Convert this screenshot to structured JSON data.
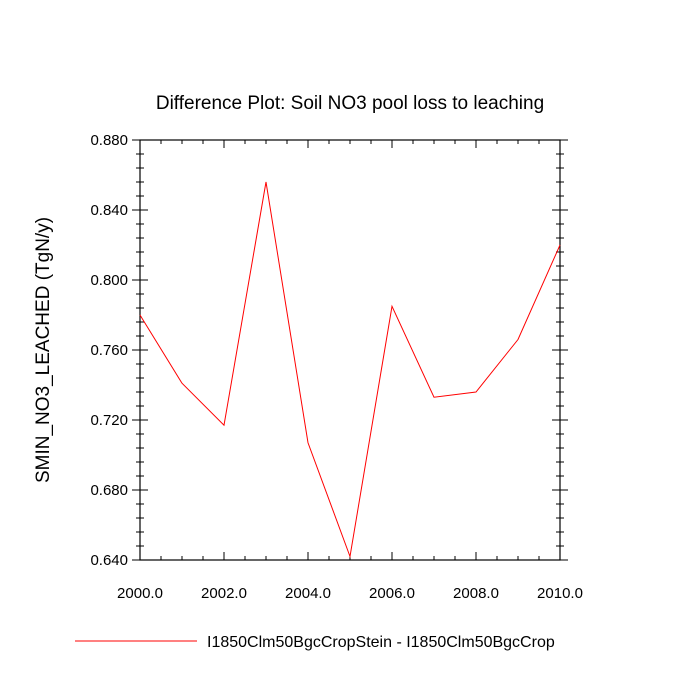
{
  "chart_data": {
    "type": "line",
    "title": "Difference Plot: Soil NO3 pool loss to leaching",
    "xlabel": "",
    "ylabel": "SMIN_NO3_LEACHED  (TgN/y)",
    "xlim": [
      2000,
      2010
    ],
    "ylim": [
      0.64,
      0.88
    ],
    "x_ticks": [
      2000,
      2002,
      2004,
      2006,
      2008,
      2010
    ],
    "x_tick_labels": [
      "2000.0",
      "2002.0",
      "2004.0",
      "2006.0",
      "2008.0",
      "2010.0"
    ],
    "y_ticks": [
      0.64,
      0.68,
      0.72,
      0.76,
      0.8,
      0.84,
      0.88
    ],
    "y_tick_labels": [
      "0.640",
      "0.680",
      "0.720",
      "0.760",
      "0.800",
      "0.840",
      "0.880"
    ],
    "grid": false,
    "legend_position": "bottom",
    "series": [
      {
        "name": "I1850Clm50BgcCropStein - I1850Clm50BgcCrop",
        "color": "#ff0000",
        "x": [
          2000,
          2001,
          2002,
          2003,
          2004,
          2005,
          2006,
          2007,
          2008,
          2009,
          2010
        ],
        "y": [
          0.78,
          0.741,
          0.717,
          0.856,
          0.707,
          0.642,
          0.785,
          0.733,
          0.736,
          0.766,
          0.82
        ]
      }
    ]
  }
}
